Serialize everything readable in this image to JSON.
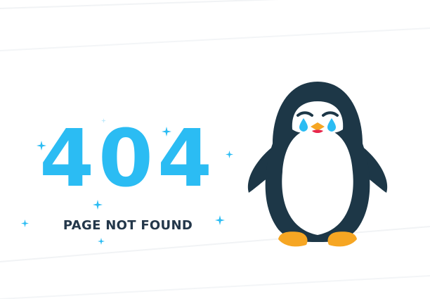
{
  "error": {
    "code": "404",
    "message": "PAGE NOT FOUND"
  },
  "colors": {
    "accent": "#2bbcf3",
    "text_dark": "#23374a",
    "penguin_body": "#1d3747",
    "penguin_belly": "#ffffff",
    "penguin_feet": "#f6a623",
    "penguin_beak": "#f6a623",
    "tears": "#2bbcf3",
    "mouth": "#e8274b"
  },
  "icons": {
    "sparkle": "four-point-star-icon",
    "mascot": "crying-penguin"
  }
}
